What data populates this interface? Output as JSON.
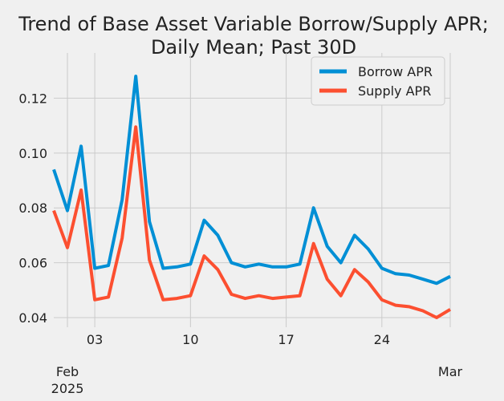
{
  "chart_data": {
    "type": "line",
    "title": "Trend of Base Asset Variable Borrow/Supply APR;",
    "subtitle": "Daily Mean; Past 30D",
    "xlabel": "",
    "ylabel": "",
    "x": [
      "2025-01-31",
      "2025-02-01",
      "2025-02-02",
      "2025-02-03",
      "2025-02-04",
      "2025-02-05",
      "2025-02-06",
      "2025-02-07",
      "2025-02-08",
      "2025-02-09",
      "2025-02-10",
      "2025-02-11",
      "2025-02-12",
      "2025-02-13",
      "2025-02-14",
      "2025-02-15",
      "2025-02-16",
      "2025-02-17",
      "2025-02-18",
      "2025-02-19",
      "2025-02-20",
      "2025-02-21",
      "2025-02-22",
      "2025-02-23",
      "2025-02-24",
      "2025-02-25",
      "2025-02-26",
      "2025-02-27",
      "2025-02-28",
      "2025-03-01"
    ],
    "xlim": [
      "2025-01-31",
      "2025-03-01"
    ],
    "ylim": [
      0.0365,
      0.1365
    ],
    "y_ticks": [
      0.04,
      0.06,
      0.08,
      0.1,
      0.12
    ],
    "y_tick_labels": [
      "0.04",
      "0.06",
      "0.08",
      "0.10",
      "0.12"
    ],
    "x_ticks": [
      "2025-02-03",
      "2025-02-10",
      "2025-02-17",
      "2025-02-24"
    ],
    "x_tick_labels": [
      "03",
      "10",
      "17",
      "24"
    ],
    "x_major_ticks": [
      "2025-02-01",
      "2025-03-01"
    ],
    "x_major_tick_labels": [
      "Feb",
      "Mar"
    ],
    "x_year_label": "2025",
    "grid": true,
    "legend_position": "top-right",
    "series": [
      {
        "name": "Borrow APR",
        "color": "#008fd5",
        "values": [
          0.094,
          0.079,
          0.1025,
          0.058,
          0.059,
          0.083,
          0.128,
          0.075,
          0.058,
          0.0585,
          0.0595,
          0.0755,
          0.07,
          0.06,
          0.0585,
          0.0595,
          0.0585,
          0.0585,
          0.0595,
          0.08,
          0.066,
          0.06,
          0.07,
          0.065,
          0.058,
          0.056,
          0.0555,
          0.054,
          0.0525,
          0.055
        ]
      },
      {
        "name": "Supply APR",
        "color": "#fc4f30",
        "values": [
          0.079,
          0.0655,
          0.0865,
          0.0465,
          0.0475,
          0.069,
          0.1095,
          0.061,
          0.0465,
          0.047,
          0.048,
          0.0625,
          0.0575,
          0.0485,
          0.047,
          0.048,
          0.047,
          0.0475,
          0.048,
          0.067,
          0.054,
          0.048,
          0.0575,
          0.053,
          0.0465,
          0.0445,
          0.044,
          0.0425,
          0.04,
          0.043
        ]
      }
    ]
  }
}
